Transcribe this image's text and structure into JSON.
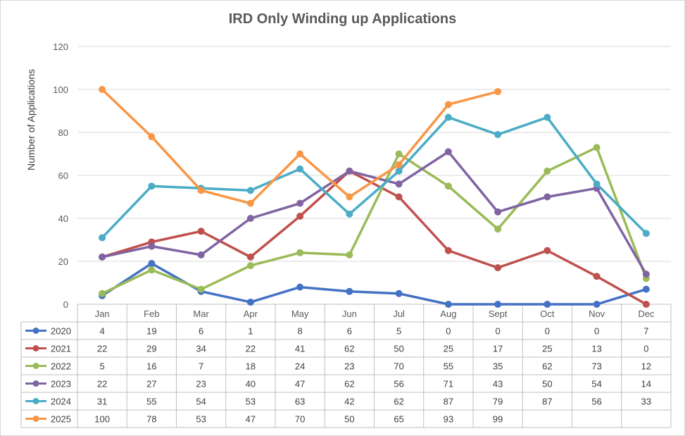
{
  "chart_data": {
    "type": "line",
    "title": "IRD Only Winding up Applications",
    "ylabel": "Number of Applications",
    "xlabel": "",
    "ylim": [
      0,
      120
    ],
    "yticks": [
      0,
      20,
      40,
      60,
      80,
      100,
      120
    ],
    "grid": true,
    "legend": "data-table-below",
    "categories": [
      "Jan",
      "Feb",
      "Mar",
      "Apr",
      "May",
      "Jun",
      "Jul",
      "Aug",
      "Sept",
      "Oct",
      "Nov",
      "Dec"
    ],
    "series": [
      {
        "name": "2020",
        "color": "#4472c4",
        "values": [
          4,
          19,
          6,
          1,
          8,
          6,
          5,
          0,
          0,
          0,
          0,
          7
        ]
      },
      {
        "name": "2021",
        "color": "#c0504d",
        "values": [
          22,
          29,
          34,
          22,
          41,
          62,
          50,
          25,
          17,
          25,
          13,
          0
        ]
      },
      {
        "name": "2022",
        "color": "#9bbb59",
        "values": [
          5,
          16,
          7,
          18,
          24,
          23,
          70,
          55,
          35,
          62,
          73,
          12
        ]
      },
      {
        "name": "2023",
        "color": "#8064a2",
        "values": [
          22,
          27,
          23,
          40,
          47,
          62,
          56,
          71,
          43,
          50,
          54,
          14
        ]
      },
      {
        "name": "2024",
        "color": "#4bacc6",
        "values": [
          31,
          55,
          54,
          53,
          63,
          42,
          62,
          87,
          79,
          87,
          56,
          33
        ]
      },
      {
        "name": "2025",
        "color": "#f79646",
        "values": [
          100,
          78,
          53,
          47,
          70,
          50,
          65,
          93,
          99,
          null,
          null,
          null
        ]
      }
    ]
  }
}
